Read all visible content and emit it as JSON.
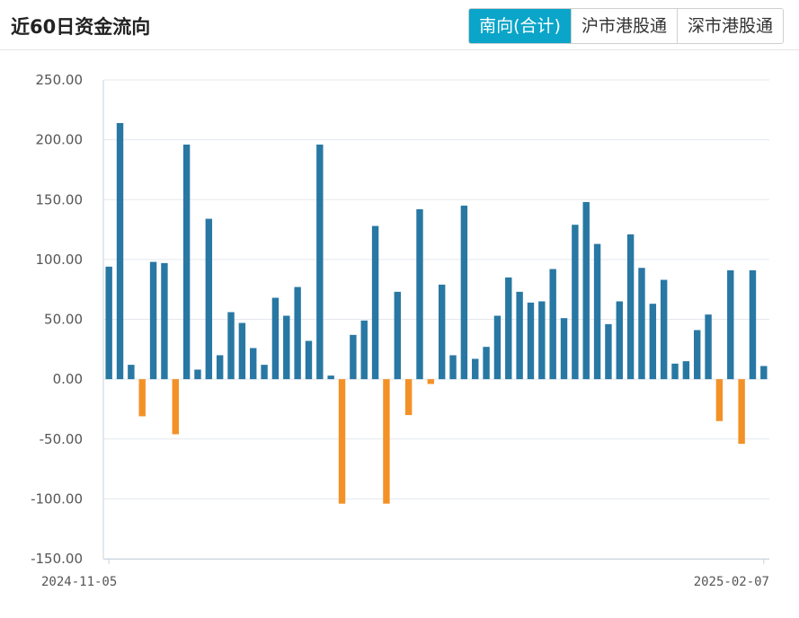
{
  "header": {
    "title": "近60日资金流向",
    "tabs": [
      {
        "label": "南向(合计)",
        "active": true
      },
      {
        "label": "沪市港股通",
        "active": false
      },
      {
        "label": "深市港股通",
        "active": false
      }
    ]
  },
  "colors": {
    "positive_bar": "#2878a3",
    "negative_bar": "#f39127",
    "active_tab": "#0aa5c9",
    "grid": "#e3e8ee"
  },
  "chart_data": {
    "type": "bar",
    "title": "",
    "xlabel": "",
    "ylabel": "",
    "ylim": [
      -150,
      250
    ],
    "y_ticks": [
      "250.00",
      "200.00",
      "150.00",
      "100.00",
      "50.00",
      "0.00",
      "-50.00",
      "-100.00",
      "-150.00"
    ],
    "x_tick_labels": [
      "2024-11-05",
      "2025-02-07"
    ],
    "grid": true,
    "legend": "none",
    "values": [
      94,
      214,
      12,
      -31,
      98,
      97,
      -46,
      196,
      8,
      134,
      20,
      56,
      47,
      26,
      12,
      68,
      53,
      77,
      32,
      196,
      3,
      -104,
      37,
      49,
      128,
      -104,
      73,
      -30,
      142,
      -4,
      79,
      20,
      145,
      17,
      27,
      53,
      85,
      73,
      64,
      65,
      92,
      51,
      129,
      148,
      113,
      46,
      65,
      121,
      93,
      63,
      83,
      13,
      15,
      41,
      54,
      -35,
      91,
      -54,
      91,
      11
    ]
  }
}
